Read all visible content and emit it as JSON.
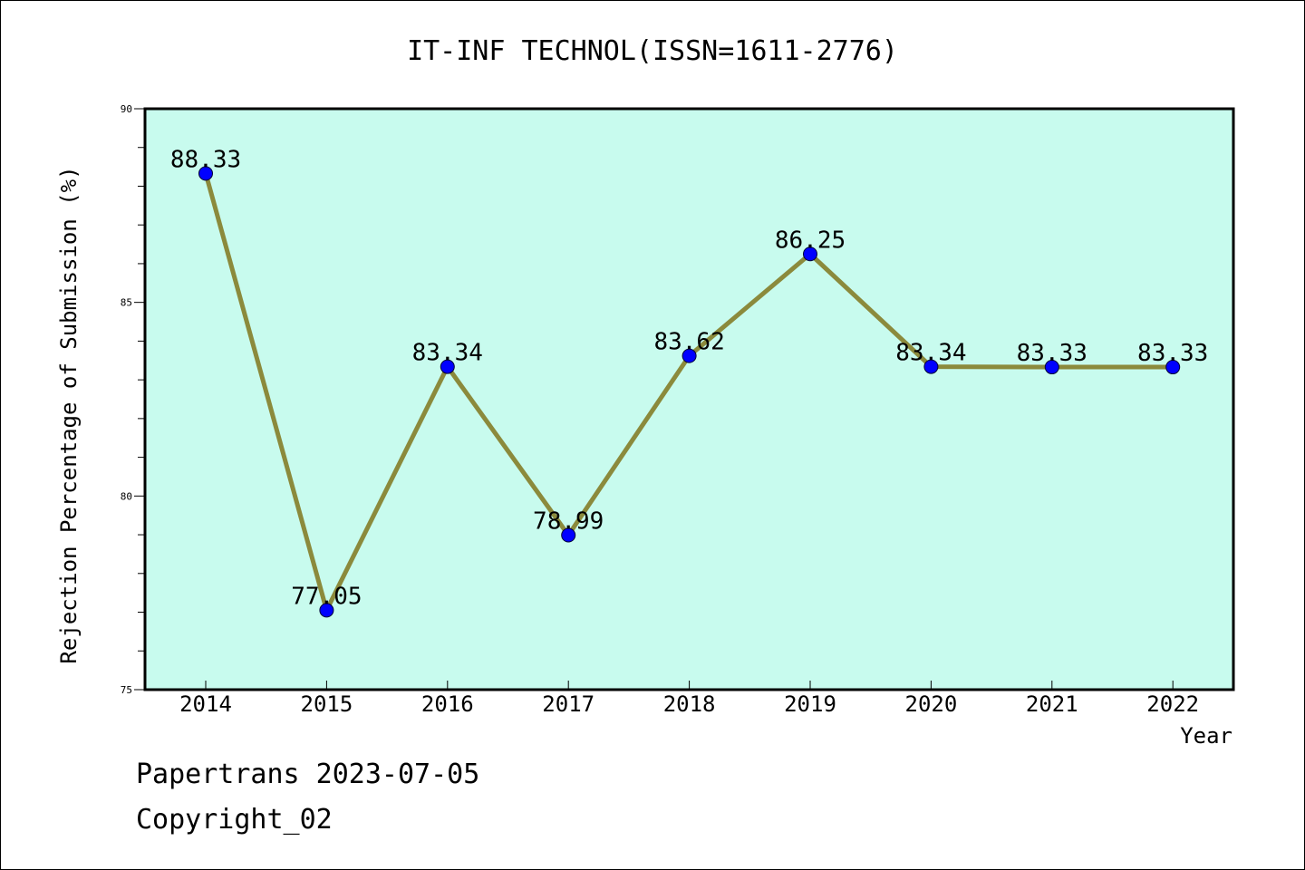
{
  "chart_data": {
    "type": "line",
    "title": "IT-INF TECHNOL(ISSN=1611-2776)",
    "xlabel": "Year",
    "ylabel": "Rejection Percentage of Submission (%)",
    "categories": [
      "2014",
      "2015",
      "2016",
      "2017",
      "2018",
      "2019",
      "2020",
      "2021",
      "2022"
    ],
    "series": [
      {
        "values": [
          88.33,
          77.05,
          83.34,
          78.99,
          83.62,
          86.25,
          83.34,
          83.33,
          83.33
        ]
      }
    ],
    "data_labels": [
      "88.33",
      "77.05",
      "83.34",
      "78.99",
      "83.62",
      "86.25",
      "83.34",
      "83.33",
      "83.33"
    ],
    "ylim": [
      75,
      90
    ],
    "yticks": [
      75,
      80,
      85,
      90
    ],
    "ytick_labels": [
      "75",
      "80",
      "85",
      "90"
    ],
    "grid": false,
    "colors": {
      "plot_background": "#c8fbee",
      "line": "#8b8a3c",
      "marker": "#0000ff",
      "axes": "#000000"
    }
  },
  "footer": {
    "line1": "Papertrans 2023-07-05",
    "line2": "Copyright_02"
  }
}
